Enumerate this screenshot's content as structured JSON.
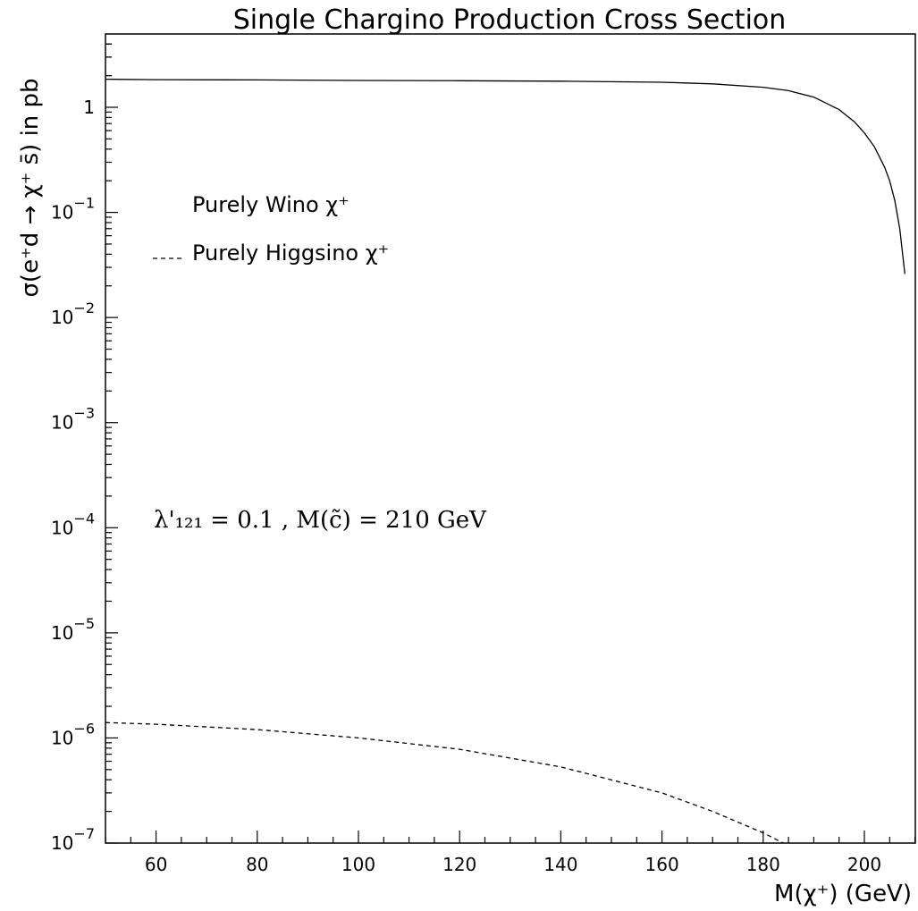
{
  "chart_data": {
    "type": "line",
    "title": "Single Chargino Production Cross Section",
    "xlabel": "M(χ⁺) (GeV)",
    "ylabel": "σ(e⁺d → χ⁺ s̄) in pb",
    "xlim": [
      50,
      210
    ],
    "ylim": [
      1e-07,
      5
    ],
    "y_scale": "log",
    "grid": false,
    "x_ticks": [
      60,
      80,
      100,
      120,
      140,
      160,
      180,
      200
    ],
    "x_tick_labels": [
      "60",
      "80",
      "100",
      "120",
      "140",
      "160",
      "180",
      "200"
    ],
    "y_ticks": [
      1,
      0.1,
      0.01,
      0.001,
      0.0001,
      1e-05,
      1e-06,
      1e-07
    ],
    "y_tick_labels": [
      {
        "base": "1",
        "exp": ""
      },
      {
        "base": "10",
        "exp": "−1"
      },
      {
        "base": "10",
        "exp": "−2"
      },
      {
        "base": "10",
        "exp": "−3"
      },
      {
        "base": "10",
        "exp": "−4"
      },
      {
        "base": "10",
        "exp": "−5"
      },
      {
        "base": "10",
        "exp": "−6"
      },
      {
        "base": "10",
        "exp": "−7"
      }
    ],
    "legend_position": "top-left",
    "annotation": "λ'₁₂₁ = 0.1 , M(c̃) = 210 GeV",
    "series": [
      {
        "name": "Purely Wino χ⁺",
        "style": "solid",
        "x": [
          50,
          60,
          80,
          100,
          120,
          140,
          160,
          170,
          180,
          185,
          190,
          195,
          198,
          200,
          202,
          204,
          205,
          206,
          207,
          208
        ],
        "y": [
          1.85,
          1.83,
          1.82,
          1.8,
          1.79,
          1.77,
          1.73,
          1.67,
          1.55,
          1.44,
          1.25,
          0.95,
          0.73,
          0.57,
          0.42,
          0.27,
          0.2,
          0.13,
          0.07,
          0.026
        ]
      },
      {
        "name": "Purely Higgsino χ⁺",
        "style": "dashed",
        "x": [
          50,
          60,
          80,
          100,
          120,
          140,
          160,
          170,
          180,
          184
        ],
        "y": [
          1.4e-06,
          1.35e-06,
          1.2e-06,
          1e-06,
          7.8e-07,
          5.3e-07,
          3e-07,
          2e-07,
          1.25e-07,
          1e-07
        ]
      }
    ]
  }
}
